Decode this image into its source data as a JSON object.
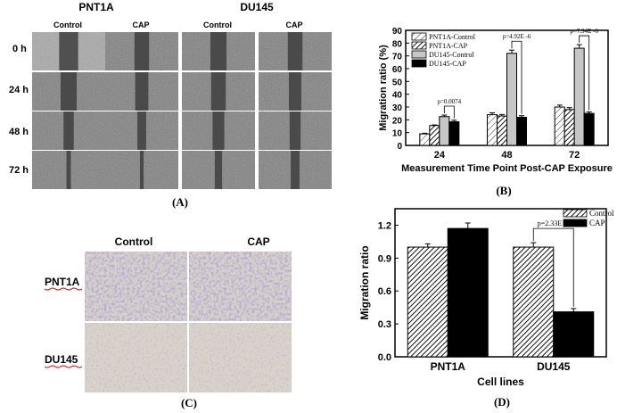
{
  "panel_a": {
    "panel_label": "(A)",
    "cell_line_headers": [
      "PNT1A",
      "DU145"
    ],
    "column_labels": [
      "Control",
      "CAP",
      "Control",
      "CAP"
    ],
    "row_labels": [
      "0 h",
      "24 h",
      "48 h",
      "72 h"
    ],
    "gap_fraction": [
      [
        0.26,
        0.2,
        0.22,
        0.2
      ],
      [
        0.22,
        0.18,
        0.2,
        0.17
      ],
      [
        0.14,
        0.12,
        0.16,
        0.15
      ],
      [
        0.06,
        0.05,
        0.1,
        0.12
      ]
    ]
  },
  "panel_c": {
    "panel_label": "(C)",
    "column_labels": [
      "Control",
      "CAP"
    ],
    "row_labels": [
      "PNT1A",
      "DU145"
    ]
  },
  "colors": {
    "photo_gray": "#8d8d8d",
    "stain_purple": "#6a5fb0",
    "stain_background": "#d9d2c8",
    "bar_light": "#c6c6c6",
    "bar_black": "#000000"
  },
  "chart_data": [
    {
      "type": "bar",
      "panel_label": "(B)",
      "title": "",
      "xlabel": "Measurement Time Point Post-CAP Exposure",
      "ylabel": "Migration ratio (%)",
      "categories": [
        "24",
        "48",
        "72"
      ],
      "ylim": [
        0,
        90
      ],
      "yticks": [
        "0",
        "10",
        "20",
        "30",
        "40",
        "50",
        "60",
        "70",
        "80",
        "90"
      ],
      "legend_position": "top-left",
      "series": [
        {
          "name": "PNT1A-Control",
          "values": [
            9,
            24,
            30
          ],
          "errors": [
            0.5,
            1.5,
            1.5
          ],
          "style": "hatch-light"
        },
        {
          "name": "PNT1A-CAP",
          "values": [
            15.5,
            23,
            28
          ],
          "errors": [
            0.5,
            1.2,
            1.5
          ],
          "style": "hatch-dark"
        },
        {
          "name": "DU145-Control",
          "values": [
            22.5,
            72,
            76
          ],
          "errors": [
            1.2,
            2.5,
            2.8
          ],
          "style": "gray"
        },
        {
          "name": "DU145-CAP",
          "values": [
            18.5,
            22,
            25
          ],
          "errors": [
            1.2,
            1.2,
            1.2
          ],
          "style": "black"
        }
      ],
      "annotations": [
        {
          "text": "p=0.0074",
          "category": "24"
        },
        {
          "text": "p=4.92E -6",
          "category": "48"
        },
        {
          "text": "p=7.94E -6",
          "category": "72"
        }
      ]
    },
    {
      "type": "bar",
      "panel_label": "(D)",
      "title": "",
      "xlabel": "Cell lines",
      "ylabel": "Migration ratio",
      "categories": [
        "PNT1A",
        "DU145"
      ],
      "ylim": [
        0,
        1.35
      ],
      "yticks": [
        "0.0",
        "0.3",
        "0.6",
        "0.9",
        "1.2"
      ],
      "legend_position": "top-right",
      "series": [
        {
          "name": "Control",
          "values": [
            1.0,
            1.0
          ],
          "errors": [
            0.03,
            0.04
          ],
          "style": "hatch-dark"
        },
        {
          "name": "CAP",
          "values": [
            1.17,
            0.41
          ],
          "errors": [
            0.05,
            0.03
          ],
          "style": "black"
        }
      ],
      "annotations": [
        {
          "text": "p=2.33E -5",
          "category": "DU145"
        }
      ]
    }
  ]
}
